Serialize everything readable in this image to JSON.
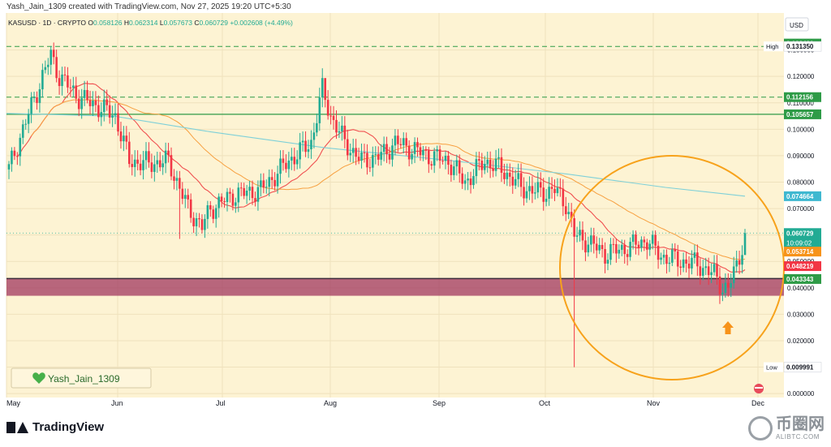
{
  "header": {
    "caption": "Yash_Jain_1309 created with TradingView.com, Nov 27, 2025 19:20 UTC+5:30"
  },
  "chart_data": {
    "type": "candlestick",
    "symbol_line": "KASUSD · 1D · CRYPTO",
    "ohlc": {
      "open_label": "O",
      "open": "0.058126",
      "high_label": "H",
      "high": "0.062314",
      "low_label": "L",
      "low": "0.057673",
      "close_label": "C",
      "close": "0.060729",
      "change": "+0.002608 (+4.49%)"
    },
    "currency": "USD",
    "y_ticks": [
      "0.000000",
      "0.010000",
      "0.020000",
      "0.030000",
      "0.040000",
      "0.050000",
      "0.060000",
      "0.070000",
      "0.080000",
      "0.090000",
      "0.100000",
      "0.110000",
      "0.120000",
      "0.130000"
    ],
    "x_ticks": [
      "May",
      "Jun",
      "Jul",
      "Aug",
      "Sep",
      "Oct",
      "Nov",
      "Dec"
    ],
    "ylim": [
      0,
      0.14
    ],
    "price_labels": [
      {
        "value": 0.132436,
        "text": "0.132436",
        "color": "#2e9b47"
      },
      {
        "value": 0.13135,
        "text": "0.131350",
        "color": "#ffffff",
        "tag": "High"
      },
      {
        "value": 0.112156,
        "text": "0.112156",
        "color": "#2e9b47"
      },
      {
        "value": 0.105657,
        "text": "0.105657",
        "color": "#2e9b47"
      },
      {
        "value": 0.074664,
        "text": "0.074664",
        "color": "#3fb8d0"
      },
      {
        "value": 0.060729,
        "text": "0.060729",
        "text2": "10:09:02",
        "color": "#22ab94"
      },
      {
        "value": 0.053714,
        "text": "0.053714",
        "color": "#f7931a"
      },
      {
        "value": 0.048219,
        "text": "0.048219",
        "color": "#f23645"
      },
      {
        "value": 0.043343,
        "text": "0.043343",
        "color": "#2e9b47"
      },
      {
        "value": 0.009991,
        "text": "0.009991",
        "color": "#ffffff",
        "tag": "Low"
      }
    ],
    "levels": {
      "dashed": [
        0.13135,
        0.112156
      ],
      "solid": [
        0.105657
      ],
      "zone": [
        0.037,
        0.0435
      ]
    },
    "signature": "Yash_Jain_1309",
    "colors": {
      "up": "#22ab94",
      "down": "#f23645",
      "ma_fast": "#f05050",
      "ma_mid": "#f7a040",
      "ma_slow": "#7ed0d8",
      "circle": "#f7a21b",
      "arrow": "#f7931a",
      "zone": "#9c2f5a",
      "level": "#2e9b47"
    }
  },
  "footer": {
    "brand": "TradingView",
    "watermark_cn": "币圈网",
    "watermark_url": "ALIBTC.COM"
  }
}
